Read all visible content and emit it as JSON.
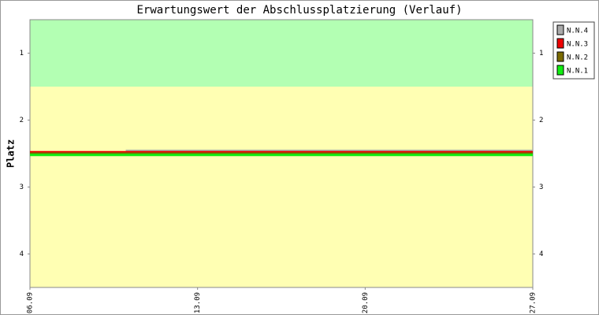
{
  "chart_data": {
    "type": "line",
    "title": "Erwartungswert der Abschlussplatzierung (Verlauf)",
    "y_label": "Platz",
    "x": [
      0,
      4,
      21
    ],
    "xlim": [
      0,
      21
    ],
    "xticks": [
      {
        "value": 0,
        "label": "06.09"
      },
      {
        "value": 7,
        "label": "13.09"
      },
      {
        "value": 14,
        "label": "20.09"
      },
      {
        "value": 21,
        "label": "27.09"
      }
    ],
    "ylim": [
      4.5,
      0.5
    ],
    "yticks": [
      1,
      2,
      3,
      4
    ],
    "bands": [
      {
        "from": 0.5,
        "to": 1.5,
        "color": "#b3ffb3"
      },
      {
        "from": 1.5,
        "to": 4.5,
        "color": "#ffffb3"
      }
    ],
    "series": [
      {
        "name": "N.N.4",
        "color": "#aaaaaa",
        "values": [
          null,
          2.46,
          2.46
        ]
      },
      {
        "name": "N.N.3",
        "color": "#ee0000",
        "values": [
          2.48,
          2.48,
          2.48
        ]
      },
      {
        "name": "N.N.2",
        "color": "#7a6a00",
        "values": [
          2.5,
          2.5,
          2.5
        ]
      },
      {
        "name": "N.N.1",
        "color": "#11ee11",
        "values": [
          2.52,
          2.52,
          2.52
        ]
      }
    ]
  }
}
